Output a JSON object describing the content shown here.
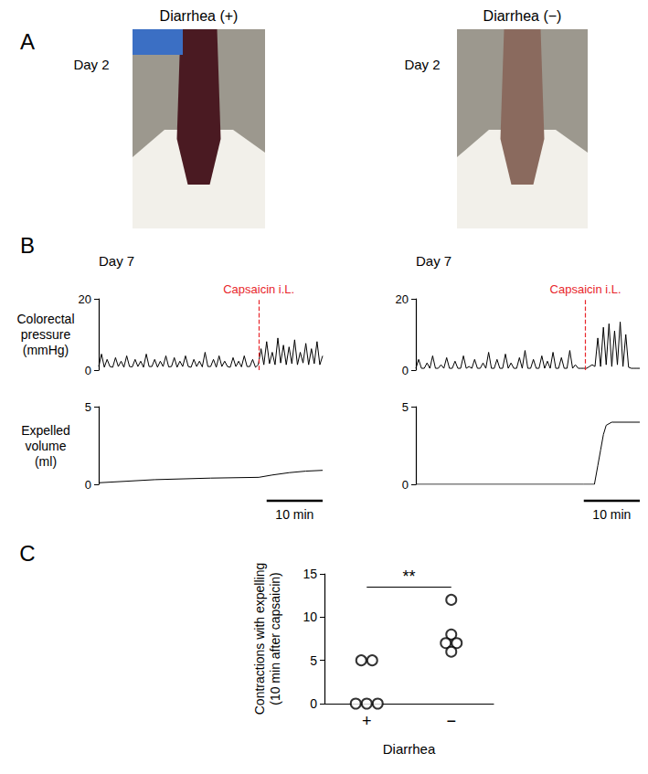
{
  "panel_letters": [
    "A",
    "B",
    "C"
  ],
  "photos": [
    {
      "title": "Diarrhea (+)",
      "day": "Day 2"
    },
    {
      "title": "Diarrhea (−)",
      "day": "Day 2"
    }
  ],
  "chart_data": [
    {
      "type": "line",
      "title": "Day 7",
      "y_label": "Colorectal pressure (mmHg)",
      "color": "#000000",
      "x": [
        0,
        0.5,
        1,
        1.5,
        2,
        2.5,
        3,
        3.5,
        4,
        4.5,
        5,
        5.5,
        6,
        6.5,
        7,
        7.5,
        8,
        8.5,
        9,
        9.5,
        10,
        10.5,
        11,
        11.5,
        12,
        12.5,
        13,
        13.5,
        14,
        14.5,
        15,
        15.5,
        16,
        16.5,
        17,
        17.5,
        18,
        18.5,
        19,
        19.5,
        20,
        20.5,
        21,
        21.5,
        22,
        22.5,
        23,
        23.5,
        24,
        24.5,
        25,
        25.5,
        26,
        26.5,
        27,
        27.5,
        28,
        28.5,
        29,
        29.5,
        30,
        30.5,
        31,
        31.5,
        32,
        32.5,
        33,
        33.5,
        34,
        34.5,
        35,
        35.5,
        36,
        36.5,
        37,
        37.5,
        38,
        38.5,
        39,
        39.5,
        40
      ],
      "values": [
        1,
        4.5,
        0.8,
        3,
        1,
        0.8,
        3.5,
        1,
        2.5,
        0.8,
        4,
        1,
        0.9,
        3,
        1,
        2.5,
        0.8,
        4.5,
        1,
        1,
        3,
        0.8,
        2.5,
        1,
        4,
        0.9,
        1,
        3.5,
        0.8,
        2.5,
        1,
        4,
        1,
        0.8,
        3,
        1,
        2.5,
        0.9,
        5,
        1,
        1,
        3,
        0.8,
        4,
        1,
        2.5,
        1,
        0.8,
        3.5,
        1,
        2.5,
        0.9,
        4,
        1,
        1,
        3,
        0.8,
        1.5,
        6,
        1.5,
        8,
        1.8,
        5,
        1.5,
        9,
        2,
        7,
        1.5,
        6.5,
        1.8,
        8.5,
        1.5,
        5,
        2,
        7.5,
        1.5,
        6,
        1.8,
        8,
        1.5,
        4
      ],
      "xlim": [
        0,
        40
      ],
      "ylim": [
        0,
        20
      ],
      "yticks": [
        0,
        20
      ],
      "grid": false,
      "tick_labels": "y",
      "annotation": {
        "x": 28.6,
        "label": "Capsaicin i.L.",
        "color": "#e8262b"
      }
    },
    {
      "type": "line",
      "y_label": "Expelled volume (ml)",
      "color": "#000000",
      "x": [
        0,
        10,
        20,
        28.6,
        31,
        34,
        37,
        40
      ],
      "values": [
        0.1,
        0.3,
        0.4,
        0.45,
        0.6,
        0.75,
        0.85,
        0.9
      ],
      "xlim": [
        0,
        40
      ],
      "ylim": [
        0,
        5
      ],
      "yticks": [
        0,
        5
      ],
      "grid": false,
      "tick_labels": "y",
      "scale_bar": {
        "value": 10,
        "label": "10 min"
      }
    },
    {
      "type": "line",
      "title": "Day 7",
      "color": "#000000",
      "x": [
        0,
        0.5,
        1,
        1.5,
        2,
        2.5,
        3,
        3.5,
        4,
        4.5,
        5,
        5.5,
        6,
        6.5,
        7,
        7.5,
        8,
        8.5,
        9,
        9.5,
        10,
        10.5,
        11,
        11.5,
        12,
        12.5,
        13,
        13.5,
        14,
        14.5,
        15,
        15.5,
        16,
        16.5,
        17,
        17.5,
        18,
        18.5,
        19,
        19.5,
        20,
        20.5,
        21,
        21.5,
        22,
        22.5,
        23,
        23.5,
        24,
        24.5,
        25,
        25.5,
        26,
        26.5,
        27,
        27.5,
        28,
        28.5,
        29,
        29.5,
        30,
        30.5,
        31,
        31.5,
        32,
        32.5,
        33,
        33.5,
        34,
        34.5,
        35,
        35.5,
        36,
        36.5,
        37,
        37.5,
        38,
        38.5,
        39,
        39.5,
        40
      ],
      "values": [
        0.5,
        3,
        0.5,
        0.5,
        2,
        0.5,
        4,
        0.5,
        0.5,
        1.5,
        0.5,
        3.5,
        0.5,
        0.5,
        2.5,
        0.5,
        0.5,
        4,
        0.5,
        1,
        0.5,
        3,
        0.5,
        0.5,
        2,
        0.5,
        5,
        0.5,
        0.5,
        3,
        0.5,
        0.5,
        4.5,
        0.5,
        2,
        0.5,
        0.5,
        3.5,
        0.5,
        5.5,
        0.5,
        0.5,
        3,
        0.5,
        0.5,
        4,
        0.5,
        2.5,
        0.5,
        5,
        0.5,
        0.5,
        3.5,
        0.5,
        0.5,
        5.5,
        0.5,
        1.5,
        0.5,
        0.5,
        0.5,
        0.5,
        1,
        1.5,
        1,
        9,
        1,
        12,
        1.5,
        13,
        1,
        11,
        1.5,
        13.5,
        1,
        10,
        0.8,
        0.5,
        0.5,
        0.5,
        0.5
      ],
      "xlim": [
        0,
        40
      ],
      "ylim": [
        0,
        20
      ],
      "yticks": [
        0,
        20
      ],
      "grid": false,
      "tick_labels": "y",
      "annotation": {
        "x": 30.3,
        "label": "Capsaicin i.L.",
        "color": "#e8262b"
      }
    },
    {
      "type": "line",
      "color": "#000000",
      "x": [
        0,
        30,
        31.9,
        32.5,
        33,
        33.5,
        34,
        35,
        40
      ],
      "values": [
        0,
        0,
        0,
        1.2,
        2.2,
        3.2,
        3.8,
        4,
        4
      ],
      "xlim": [
        0,
        40
      ],
      "ylim": [
        0,
        5
      ],
      "yticks": [
        0,
        5
      ],
      "grid": false,
      "tick_labels": "y",
      "scale_bar": {
        "value": 10,
        "label": "10 min"
      }
    },
    {
      "type": "scatter",
      "categories": [
        "+",
        "−"
      ],
      "x_label": "Diarrhea",
      "y_label": "Contractions with expelling (10 min after capsaicin)",
      "values": [
        [
          5,
          5,
          0,
          0,
          0
        ],
        [
          12,
          8,
          7,
          7,
          6
        ]
      ],
      "color": "#000000",
      "marker": "open_circle",
      "ylim": [
        0,
        15
      ],
      "yticks": [
        0,
        5,
        10,
        15
      ],
      "grid": false,
      "significance": [
        {
          "from": "+",
          "to": "−",
          "label": "**"
        }
      ]
    }
  ]
}
